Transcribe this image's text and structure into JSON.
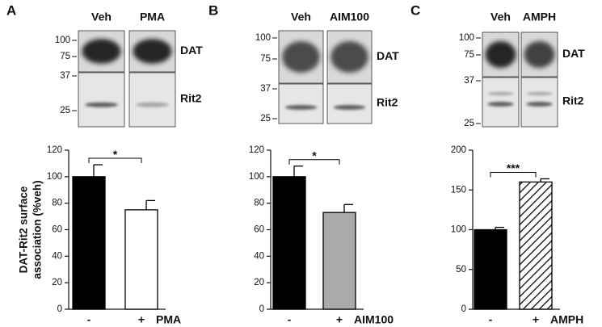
{
  "panels": [
    {
      "letter": "A",
      "lanes": [
        "Veh",
        "PMA"
      ],
      "bands": [
        "DAT",
        "Rit2"
      ],
      "markers": [
        100,
        75,
        37,
        25
      ]
    },
    {
      "letter": "B",
      "lanes": [
        "Veh",
        "AIM100"
      ],
      "bands": [
        "DAT",
        "Rit2"
      ],
      "markers": [
        100,
        75,
        37,
        25
      ]
    },
    {
      "letter": "C",
      "lanes": [
        "Veh",
        "AMPH"
      ],
      "bands": [
        "DAT",
        "Rit2"
      ],
      "markers": [
        100,
        75,
        37,
        25
      ]
    }
  ],
  "chart_data": [
    {
      "type": "bar",
      "ylabel": [
        "DAT-Rit2 surface",
        "association (%veh)"
      ],
      "categories": [
        "-",
        "+"
      ],
      "treatment": "PMA",
      "values": [
        100,
        75
      ],
      "errors": [
        9,
        7
      ],
      "colors": [
        "#000000",
        "#ffffff"
      ],
      "hatch": [
        false,
        false
      ],
      "ylim": [
        0,
        120
      ],
      "yticks": [
        0,
        20,
        40,
        60,
        80,
        100,
        120
      ],
      "significance": "*"
    },
    {
      "type": "bar",
      "categories": [
        "-",
        "+"
      ],
      "treatment": "AIM100",
      "values": [
        100,
        73
      ],
      "errors": [
        8,
        6
      ],
      "colors": [
        "#000000",
        "#aaaaaa"
      ],
      "hatch": [
        false,
        false
      ],
      "ylim": [
        0,
        120
      ],
      "yticks": [
        0,
        20,
        40,
        60,
        80,
        100,
        120
      ],
      "significance": "*"
    },
    {
      "type": "bar",
      "categories": [
        "-",
        "+"
      ],
      "treatment": "AMPH",
      "values": [
        100,
        160
      ],
      "errors": [
        3,
        4
      ],
      "colors": [
        "#000000",
        "#ffffff"
      ],
      "hatch": [
        false,
        true
      ],
      "ylim": [
        0,
        200
      ],
      "yticks": [
        0,
        50,
        100,
        150,
        200
      ],
      "significance": "***"
    }
  ]
}
